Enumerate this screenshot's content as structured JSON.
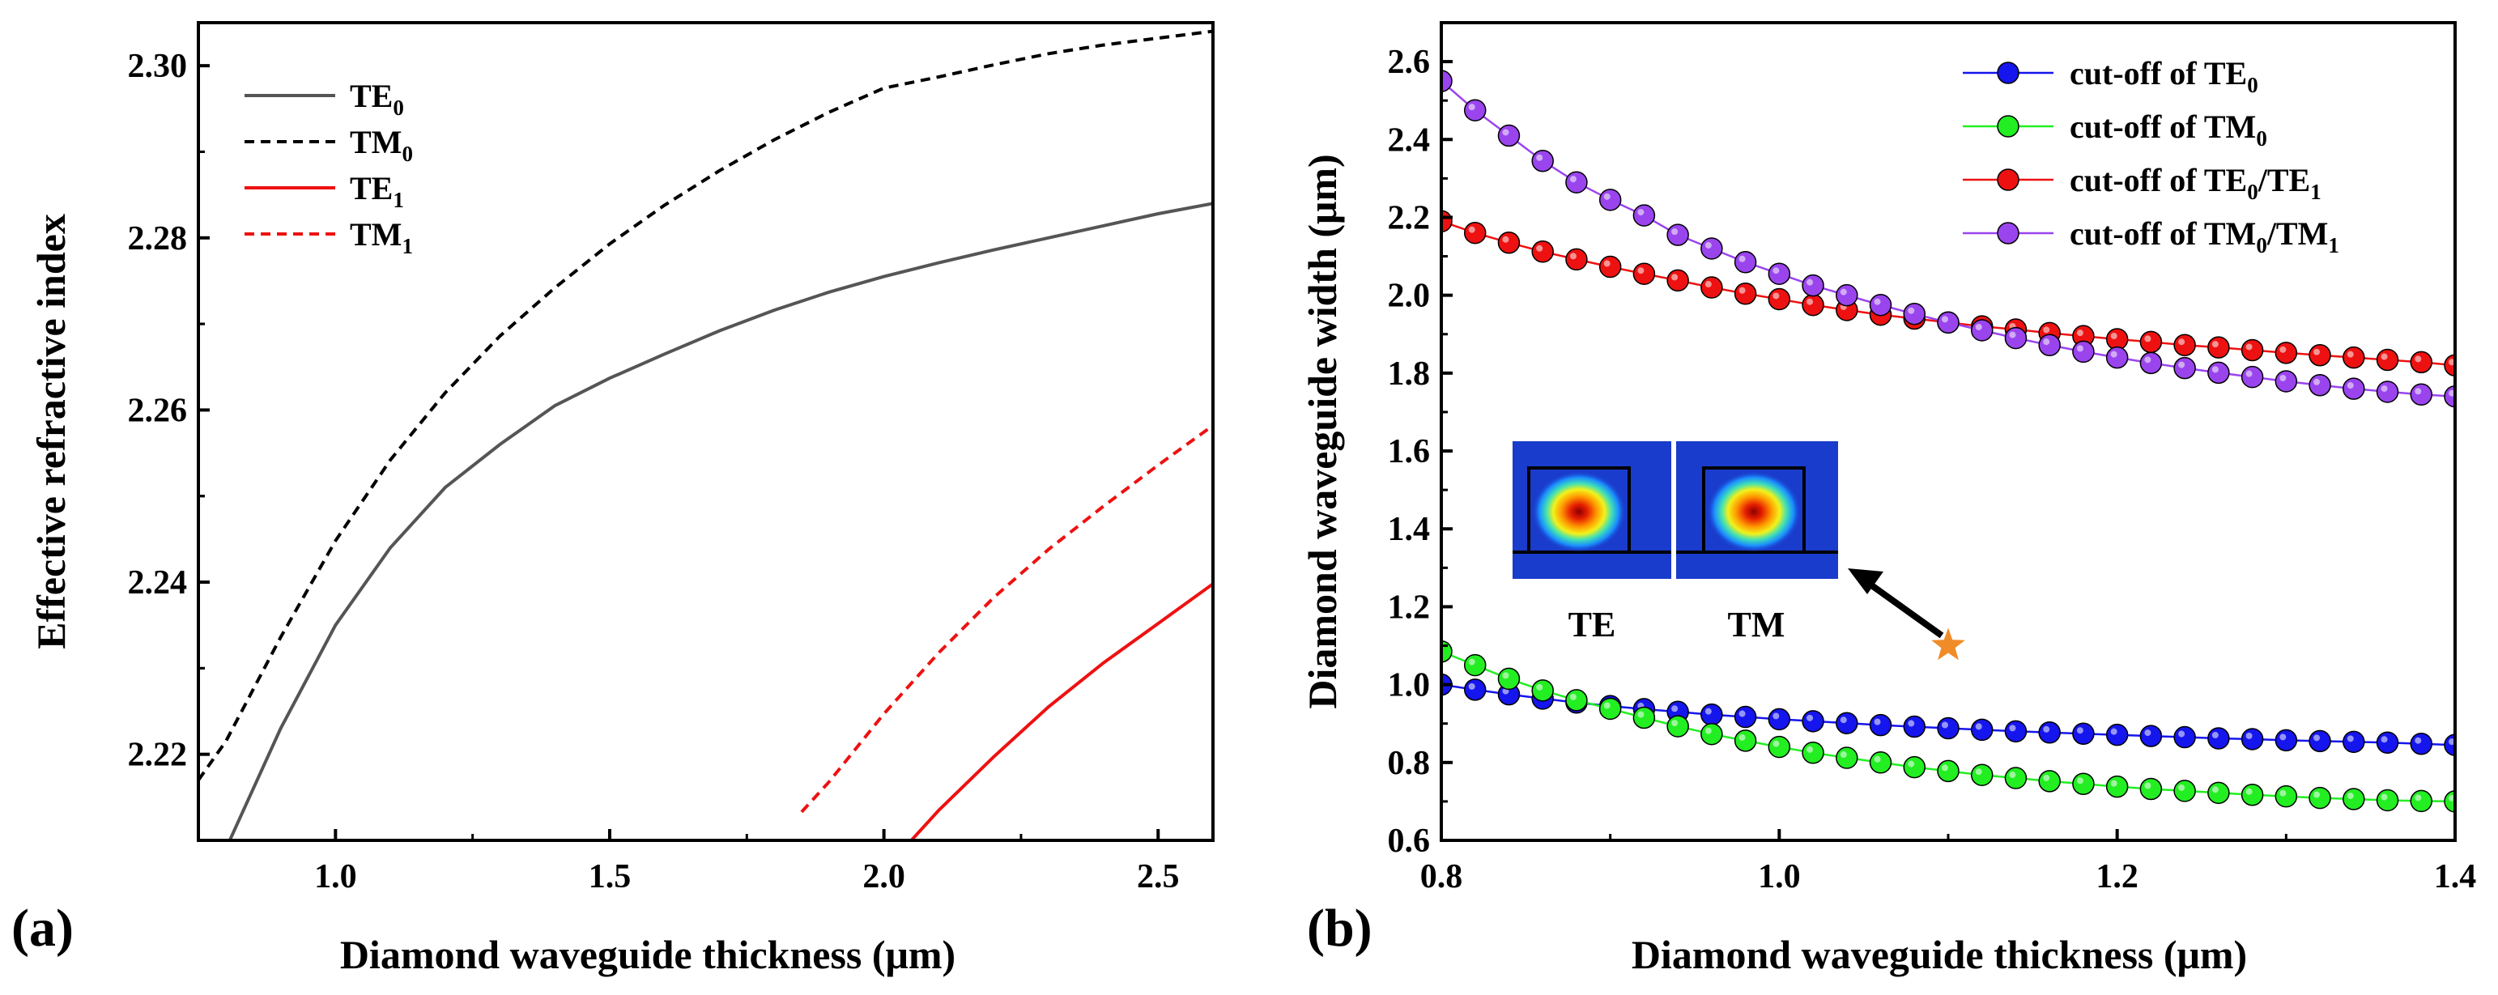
{
  "chart_data": [
    {
      "panel": "(a)",
      "type": "line",
      "xlabel": "Diamond waveguide thickness (μm)",
      "ylabel": "Effective refractive index",
      "xlim": [
        0.75,
        2.6
      ],
      "ylim": [
        2.21,
        2.305
      ],
      "xticks": [
        "1.0",
        "1.5",
        "2.0",
        "2.5"
      ],
      "yticks": [
        "2.22",
        "2.24",
        "2.26",
        "2.28",
        "2.30"
      ],
      "legend_position": "top-left",
      "series": [
        {
          "name": "TE",
          "subscript": "0",
          "color": "#555555",
          "dash": "solid",
          "x": [
            0.8,
            0.9,
            1.0,
            1.1,
            1.2,
            1.3,
            1.4,
            1.5,
            1.6,
            1.7,
            1.8,
            1.9,
            2.0,
            2.1,
            2.2,
            2.3,
            2.4,
            2.5,
            2.6
          ],
          "y": [
            2.209,
            2.223,
            2.235,
            2.244,
            2.251,
            2.256,
            2.2605,
            2.2637,
            2.2665,
            2.2692,
            2.2716,
            2.2737,
            2.2755,
            2.2771,
            2.2786,
            2.28,
            2.2814,
            2.2828,
            2.284
          ]
        },
        {
          "name": "TM",
          "subscript": "0",
          "color": "#000000",
          "dash": "dashed",
          "x": [
            0.75,
            0.8,
            0.9,
            1.0,
            1.1,
            1.2,
            1.3,
            1.4,
            1.5,
            1.6,
            1.7,
            1.8,
            1.9,
            2.0,
            2.1,
            2.2,
            2.3,
            2.4,
            2.5,
            2.6
          ],
          "y": [
            2.217,
            2.2215,
            2.2336,
            2.2448,
            2.2542,
            2.262,
            2.2686,
            2.2742,
            2.2793,
            2.2838,
            2.2878,
            2.2914,
            2.2946,
            2.2974,
            2.2987,
            2.3001,
            2.3014,
            2.3024,
            2.3032,
            2.304
          ]
        },
        {
          "name": "TE",
          "subscript": "1",
          "color": "#ee1111",
          "dash": "solid",
          "x": [
            2.05,
            2.1,
            2.2,
            2.3,
            2.4,
            2.5,
            2.6
          ],
          "y": [
            2.21,
            2.2135,
            2.2197,
            2.2255,
            2.2306,
            2.2352,
            2.2398
          ]
        },
        {
          "name": "TM",
          "subscript": "1",
          "color": "#ee1111",
          "dash": "dashed",
          "x": [
            1.85,
            1.9,
            2.0,
            2.1,
            2.2,
            2.3,
            2.4,
            2.5,
            2.6
          ],
          "y": [
            2.2133,
            2.2168,
            2.2247,
            2.2318,
            2.2382,
            2.2438,
            2.2488,
            2.2536,
            2.2582
          ]
        }
      ]
    },
    {
      "panel": "(b)",
      "type": "line",
      "xlabel": "Diamond waveguide thickness (μm)",
      "ylabel": "Diamond waveguide width (μm)",
      "xlim": [
        0.8,
        1.4
      ],
      "ylim": [
        0.6,
        2.7
      ],
      "xticks": [
        "0.8",
        "1.0",
        "1.2",
        "1.4"
      ],
      "yticks": [
        "0.6",
        "0.8",
        "1.0",
        "1.2",
        "1.4",
        "1.6",
        "1.8",
        "2.0",
        "2.2",
        "2.4",
        "2.6"
      ],
      "legend_position": "top-right",
      "x": [
        0.8,
        0.82,
        0.84,
        0.86,
        0.88,
        0.9,
        0.92,
        0.94,
        0.96,
        0.98,
        1.0,
        1.02,
        1.04,
        1.06,
        1.08,
        1.1,
        1.12,
        1.14,
        1.16,
        1.18,
        1.2,
        1.22,
        1.24,
        1.26,
        1.28,
        1.3,
        1.32,
        1.34,
        1.36,
        1.38,
        1.4
      ],
      "series": [
        {
          "name": "cut-off of TE",
          "subscript": "0",
          "color": "#1515ee",
          "values": [
            1.0,
            0.987,
            0.975,
            0.964,
            0.954,
            0.945,
            0.937,
            0.93,
            0.923,
            0.917,
            0.911,
            0.906,
            0.901,
            0.896,
            0.892,
            0.888,
            0.884,
            0.88,
            0.877,
            0.874,
            0.871,
            0.868,
            0.865,
            0.862,
            0.86,
            0.857,
            0.855,
            0.853,
            0.851,
            0.848,
            0.845
          ]
        },
        {
          "name": "cut-off of TM",
          "subscript": "0",
          "color": "#22ee22",
          "values": [
            1.085,
            1.05,
            1.015,
            0.985,
            0.96,
            0.938,
            0.915,
            0.893,
            0.873,
            0.856,
            0.84,
            0.825,
            0.812,
            0.8,
            0.788,
            0.778,
            0.768,
            0.76,
            0.752,
            0.745,
            0.738,
            0.732,
            0.727,
            0.722,
            0.717,
            0.713,
            0.709,
            0.706,
            0.703,
            0.701,
            0.7
          ]
        },
        {
          "name": "cut-off of TE",
          "subscript": "0",
          "name_tail": "/TE",
          "subscript2": "1",
          "color": "#ee1111",
          "values": [
            2.19,
            2.16,
            2.135,
            2.112,
            2.092,
            2.073,
            2.055,
            2.038,
            2.02,
            2.004,
            1.99,
            1.975,
            1.962,
            1.95,
            1.94,
            1.93,
            1.92,
            1.912,
            1.903,
            1.895,
            1.887,
            1.88,
            1.872,
            1.866,
            1.859,
            1.852,
            1.846,
            1.84,
            1.834,
            1.828,
            1.82
          ]
        },
        {
          "name": "cut-off of TM",
          "subscript": "0",
          "name_tail": "/TM",
          "subscript2": "1",
          "color": "#9a44ee",
          "values": [
            2.55,
            2.475,
            2.41,
            2.345,
            2.29,
            2.245,
            2.205,
            2.155,
            2.12,
            2.085,
            2.055,
            2.025,
            2.0,
            1.975,
            1.952,
            1.93,
            1.91,
            1.89,
            1.872,
            1.855,
            1.84,
            1.826,
            1.813,
            1.801,
            1.79,
            1.779,
            1.769,
            1.76,
            1.752,
            1.745,
            1.74
          ]
        }
      ],
      "annotation": {
        "marker": "star",
        "x": 1.1,
        "y": 1.1,
        "color": "#f08c28"
      },
      "inset_labels": [
        "TE",
        "TM"
      ]
    }
  ]
}
